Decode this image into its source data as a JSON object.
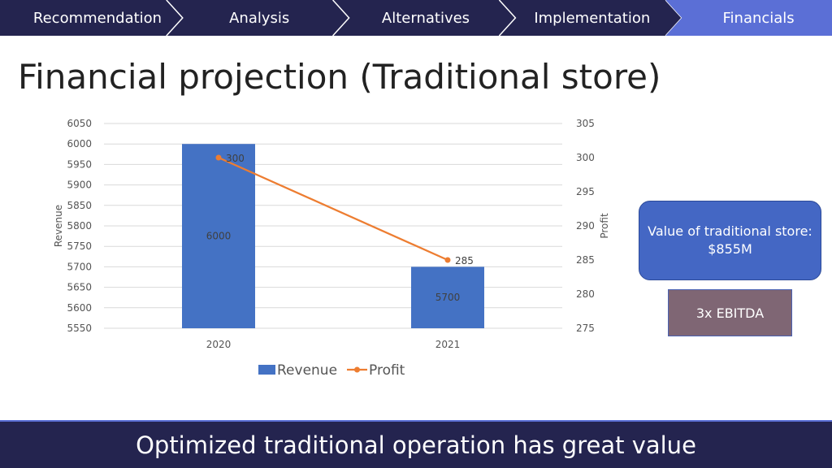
{
  "nav": {
    "items": [
      {
        "label": "Recommendation",
        "active": false
      },
      {
        "label": "Analysis",
        "active": false
      },
      {
        "label": "Alternatives",
        "active": false
      },
      {
        "label": "Implementation",
        "active": false
      },
      {
        "label": "Financials",
        "active": true
      }
    ],
    "colors": {
      "inactive": "#24244f",
      "active": "#5b6fd6",
      "divider": "#ffffff"
    }
  },
  "page_title": "Financial projection (Traditional store)",
  "callouts": {
    "value_line1": "Value of traditional store:",
    "value_line2": "$855M",
    "multiple": "3x EBITDA"
  },
  "footer_text": "Optimized traditional operation has great value",
  "chart_data": {
    "type": "bar",
    "categories": [
      "2020",
      "2021"
    ],
    "series": [
      {
        "name": "Revenue",
        "type": "bar",
        "axis": "left",
        "values": [
          6000,
          5700
        ],
        "color": "#4472c4"
      },
      {
        "name": "Profit",
        "type": "line",
        "axis": "right",
        "values": [
          300,
          285
        ],
        "color": "#ed7d31"
      }
    ],
    "title": "",
    "xlabel": "",
    "ylabel": "Revenue",
    "y2label": "Profit",
    "ylim": [
      5550,
      6050
    ],
    "y2lim": [
      275,
      305
    ],
    "yticks": [
      5550,
      5600,
      5650,
      5700,
      5750,
      5800,
      5850,
      5900,
      5950,
      6000,
      6050
    ],
    "y2ticks": [
      275,
      280,
      285,
      290,
      295,
      300,
      305
    ],
    "grid": true,
    "legend": "bottom"
  }
}
